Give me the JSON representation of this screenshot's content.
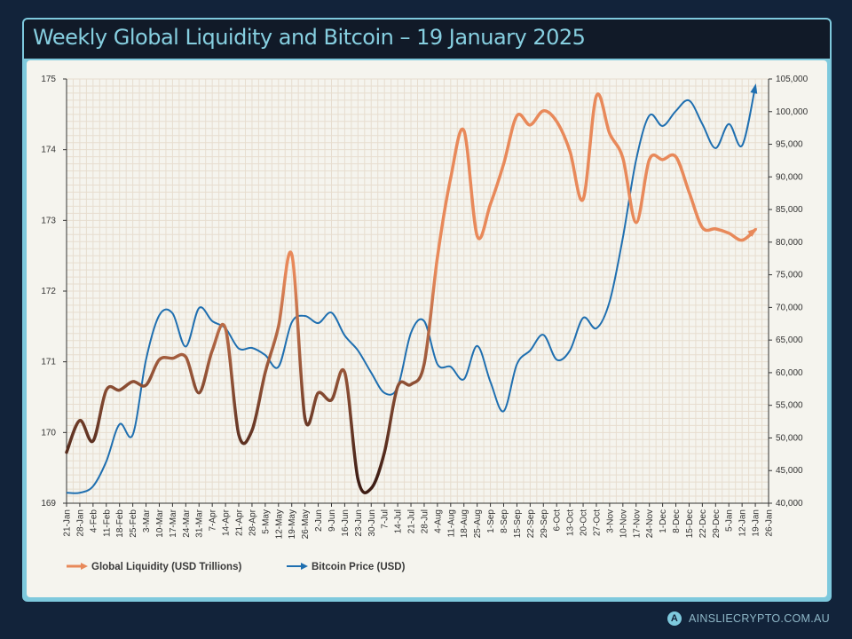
{
  "title": "Weekly Global Liquidity and Bitcoin – 19 January 2025",
  "footer": {
    "logo_letter": "A",
    "site": "AINSLIECRYPTO.COM.AU"
  },
  "colors": {
    "background": "#12233a",
    "frame": "#7ec9dd",
    "liquidity_high": "#e8895a",
    "liquidity_low": "#3e1d14",
    "bitcoin": "#1f6fb0"
  },
  "chart_data": {
    "type": "line",
    "title": "Weekly Global Liquidity and Bitcoin – 19 January 2025",
    "grid": true,
    "legend_position": "bottom-left",
    "x_tick_labels": [
      "21-Jan",
      "28-Jan",
      "4-Feb",
      "11-Feb",
      "18-Feb",
      "25-Feb",
      "3-Mar",
      "10-Mar",
      "17-Mar",
      "24-Mar",
      "31-Mar",
      "7-Apr",
      "14-Apr",
      "21-Apr",
      "28-Apr",
      "5-May",
      "12-May",
      "19-May",
      "26-May",
      "2-Jun",
      "9-Jun",
      "16-Jun",
      "23-Jun",
      "30-Jun",
      "7-Jul",
      "14-Jul",
      "21-Jul",
      "28-Jul",
      "4-Aug",
      "11-Aug",
      "18-Aug",
      "25-Aug",
      "1-Sep",
      "8-Sep",
      "15-Sep",
      "22-Sep",
      "29-Sep",
      "6-Oct",
      "13-Oct",
      "20-Oct",
      "27-Oct",
      "3-Nov",
      "10-Nov",
      "17-Nov",
      "24-Nov",
      "1-Dec",
      "8-Dec",
      "15-Dec",
      "22-Dec",
      "29-Dec",
      "5-Jan",
      "12-Jan",
      "19-Jan",
      "26-Jan"
    ],
    "y_left": {
      "range": [
        169,
        175
      ],
      "ticks": [
        "169",
        "170",
        "171",
        "172",
        "173",
        "174",
        "175"
      ]
    },
    "y_right": {
      "range": [
        40000,
        105000
      ],
      "ticks": [
        "40,000",
        "45,000",
        "50,000",
        "55,000",
        "60,000",
        "65,000",
        "70,000",
        "75,000",
        "80,000",
        "85,000",
        "90,000",
        "95,000",
        "100,000",
        "105,000"
      ]
    },
    "series": [
      {
        "name": "Global Liquidity (USD Trillions)",
        "axis": "left",
        "values": [
          169.72,
          170.17,
          169.88,
          170.6,
          170.6,
          170.72,
          170.67,
          171.03,
          171.05,
          171.07,
          170.56,
          171.16,
          171.47,
          169.97,
          170.03,
          170.85,
          171.5,
          172.52,
          170.2,
          170.56,
          170.46,
          170.85,
          169.34,
          169.21,
          169.72,
          170.65,
          170.68,
          170.97,
          172.48,
          173.6,
          174.27,
          172.78,
          173.23,
          173.8,
          174.48,
          174.35,
          174.55,
          174.4,
          173.98,
          173.3,
          174.76,
          174.23,
          173.88,
          172.97,
          173.86,
          173.86,
          173.9,
          173.4,
          172.9,
          172.88,
          172.82,
          172.72,
          172.87
        ]
      },
      {
        "name": "Bitcoin Price (USD)",
        "axis": "right",
        "values": [
          41600,
          41600,
          42600,
          46400,
          52100,
          50500,
          62000,
          68800,
          69100,
          64000,
          69900,
          67900,
          66800,
          63700,
          63800,
          62700,
          60900,
          67700,
          68700,
          67600,
          69200,
          65700,
          63400,
          60000,
          56900,
          57800,
          66100,
          67900,
          61300,
          60900,
          59000,
          64100,
          58600,
          54100,
          61300,
          63400,
          65800,
          62000,
          63400,
          68400,
          66800,
          70900,
          80700,
          92600,
          99400,
          97800,
          100100,
          101700,
          98100,
          94400,
          98100,
          94800,
          103900
        ]
      }
    ]
  }
}
